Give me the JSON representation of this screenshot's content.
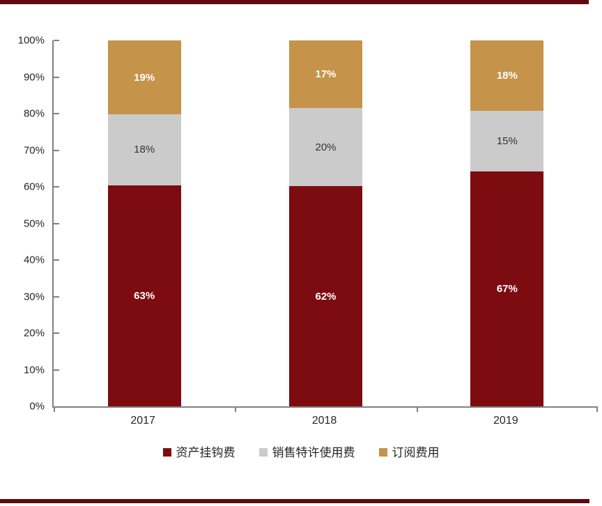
{
  "page": {
    "background": "#FFFFFF",
    "top_rule_color": "#61090E",
    "bottom_rule_color": "#61090E"
  },
  "chart_data": {
    "type": "bar",
    "stacked": true,
    "title": "",
    "xlabel": "",
    "ylabel": "",
    "categories": [
      "2017",
      "2018",
      "2019"
    ],
    "series": [
      {
        "name": "资产挂钩费",
        "color": "#7D0C10",
        "label_color": "#FFFFFF",
        "label_bold": true,
        "values": [
          63,
          62,
          67
        ]
      },
      {
        "name": "销售特许使用费",
        "color": "#CBCBCB",
        "label_color": "#333333",
        "label_bold": false,
        "values": [
          18,
          20,
          15
        ]
      },
      {
        "name": "订阅费用",
        "color": "#C5934A",
        "label_color": "#FFFFFF",
        "label_bold": true,
        "values": [
          19,
          17,
          18
        ]
      }
    ],
    "value_suffix": "%",
    "ylim": [
      0,
      100
    ],
    "ytick_step": 10,
    "ytick_suffix": "%",
    "grid": false,
    "legend_position": "bottom",
    "axis_color": "#808080",
    "text_color": "#262626"
  }
}
